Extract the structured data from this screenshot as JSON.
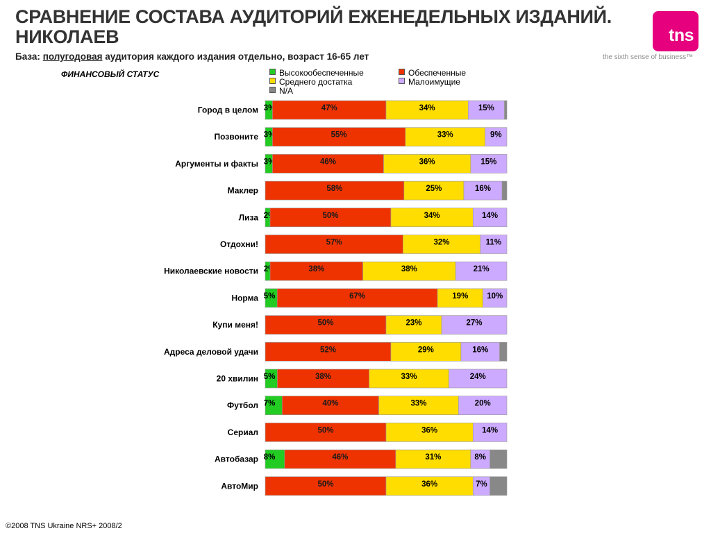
{
  "header": {
    "title": "СРАВНЕНИЕ СОСТАВА АУДИТОРИЙ ЕЖЕНЕДЕЛЬНЫХ ИЗДАНИЙ. НИКОЛАЕВ",
    "base_label": "База:",
    "base_underlined": "полугодовая",
    "base_rest": "аудитория каждого издания отдельно, возраст 16-65 лет",
    "section_label": "ФИНАНСОВЫЙ СТАТУС",
    "logo_text": "tns",
    "tagline": "the sixth sense of business™"
  },
  "footer": {
    "text": "©2008 TNS Ukraine  NRS+ 2008/2"
  },
  "colors": {
    "high": "#22cc22",
    "well": "#ee3300",
    "middle": "#ffdd00",
    "low": "#ccaaff",
    "na": "#888888",
    "brand": "#e6007e"
  },
  "chart_data": {
    "type": "bar",
    "orientation": "horizontal",
    "stacked": true,
    "normalized": true,
    "xlim": [
      0,
      100
    ],
    "unit": "%",
    "grid": false,
    "legend_placement": "top",
    "categories": [
      "Город в целом",
      "Позвоните",
      "Аргументы и факты",
      "Маклер",
      "Лиза",
      "Отдохни!",
      "Николаевские новости",
      "Норма",
      "Купи меня!",
      "Адреса деловой удачи",
      "20 хвилин",
      "Футбол",
      "Сериал",
      "Автобазар",
      "АвтоМир"
    ],
    "series": [
      {
        "key": "high",
        "name": "Высокообеспеченные",
        "values": [
          3,
          3,
          3,
          0,
          2,
          0,
          2,
          5,
          0,
          0,
          5,
          7,
          0,
          8,
          0
        ],
        "labels": [
          "3%",
          "3%",
          "3%",
          "",
          "2%",
          "",
          "2%",
          "5%",
          "",
          "",
          "5%",
          "7%",
          "",
          "8%",
          ""
        ]
      },
      {
        "key": "well",
        "name": "Обеспеченные",
        "values": [
          47,
          55,
          46,
          58,
          50,
          57,
          38,
          67,
          50,
          52,
          38,
          40,
          50,
          46,
          50
        ],
        "labels": [
          "47%",
          "55%",
          "46%",
          "58%",
          "50%",
          "57%",
          "38%",
          "67%",
          "50%",
          "52%",
          "38%",
          "40%",
          "50%",
          "46%",
          "50%"
        ]
      },
      {
        "key": "middle",
        "name": "Среднего достатка",
        "values": [
          34,
          33,
          36,
          25,
          34,
          32,
          38,
          19,
          23,
          29,
          33,
          33,
          36,
          31,
          36
        ],
        "labels": [
          "34%",
          "33%",
          "36%",
          "25%",
          "34%",
          "32%",
          "38%",
          "19%",
          "23%",
          "29%",
          "33%",
          "33%",
          "36%",
          "31%",
          "36%"
        ]
      },
      {
        "key": "low",
        "name": "Малоимущие",
        "values": [
          15,
          9,
          15,
          16,
          14,
          11,
          21,
          10,
          27,
          16,
          24,
          20,
          14,
          8,
          7
        ],
        "labels": [
          "15%",
          "9%",
          "15%",
          "16%",
          "14%",
          "11%",
          "21%",
          "10%",
          "27%",
          "16%",
          "24%",
          "20%",
          "14%",
          "8%",
          "7%"
        ]
      },
      {
        "key": "na",
        "name": "N/A",
        "values": [
          1,
          0,
          0,
          2,
          0,
          0,
          0,
          0,
          0,
          3,
          0,
          0,
          0,
          7,
          7
        ],
        "labels": [
          "",
          "",
          "",
          "",
          "",
          "",
          "",
          "",
          "",
          "",
          "",
          "",
          "",
          "",
          ""
        ]
      }
    ]
  }
}
